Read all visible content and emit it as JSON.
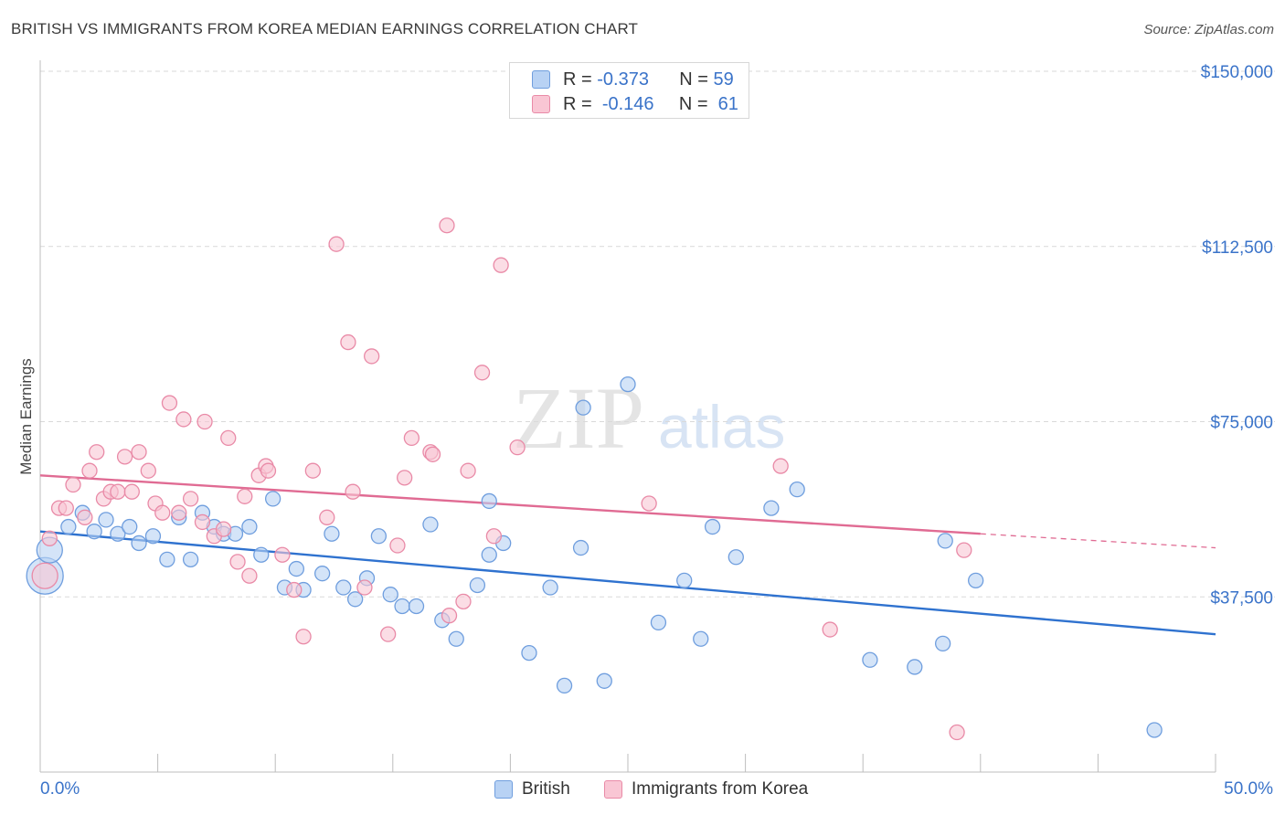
{
  "title": "BRITISH VS IMMIGRANTS FROM KOREA MEDIAN EARNINGS CORRELATION CHART",
  "source": "Source: ZipAtlas.com",
  "watermark": {
    "zip": "ZIP",
    "atlas": "atlas"
  },
  "legend": {
    "r_label": "R =",
    "n_label": "N =",
    "rows": [
      {
        "series": "British",
        "r": "-0.373",
        "n": "59"
      },
      {
        "series": "Immigrants from Korea",
        "r": "-0.146",
        "n": "61"
      }
    ]
  },
  "colors": {
    "british_fill": "#b8d2f4",
    "british_stroke": "#6f9ede",
    "british_line": "#2f72cf",
    "korea_fill": "#f9c6d4",
    "korea_stroke": "#e98aa7",
    "korea_line": "#e06b93",
    "tick_text": "#3a73c9",
    "grid": "#d9d9d9"
  },
  "chart_data": {
    "type": "scatter",
    "title": "BRITISH VS IMMIGRANTS FROM KOREA MEDIAN EARNINGS CORRELATION CHART",
    "ylabel": "Median Earnings",
    "xlabel": "",
    "xlim": [
      0,
      50
    ],
    "ylim": [
      0,
      150000
    ],
    "x_tick_labels": [
      "0.0%",
      "50.0%"
    ],
    "y_ticks": [
      37500,
      75000,
      112500,
      150000
    ],
    "y_tick_labels": [
      "$37,500",
      "$75,000",
      "$112,500",
      "$150,000"
    ],
    "grid": "horizontal dashed",
    "legend_position": "top-center",
    "series": [
      {
        "name": "British",
        "trend": {
          "x": [
            0,
            50
          ],
          "y": [
            51500,
            29500
          ]
        },
        "points": [
          [
            0.2,
            42000,
            3
          ],
          [
            0.4,
            47500,
            2
          ],
          [
            1.2,
            52500,
            1
          ],
          [
            1.8,
            55500,
            1
          ],
          [
            2.3,
            51500,
            1
          ],
          [
            2.8,
            54000,
            1
          ],
          [
            3.3,
            51000,
            1
          ],
          [
            3.8,
            52500,
            1
          ],
          [
            4.2,
            49000,
            1
          ],
          [
            4.8,
            50500,
            1
          ],
          [
            5.4,
            45500,
            1
          ],
          [
            5.9,
            54500,
            1
          ],
          [
            6.4,
            45500,
            1
          ],
          [
            6.9,
            55500,
            1
          ],
          [
            7.4,
            52500,
            1
          ],
          [
            7.8,
            51000,
            1
          ],
          [
            8.3,
            51000,
            1
          ],
          [
            8.9,
            52500,
            1
          ],
          [
            9.4,
            46500,
            1
          ],
          [
            9.9,
            58500,
            1
          ],
          [
            10.4,
            39500,
            1
          ],
          [
            10.9,
            43500,
            1
          ],
          [
            11.2,
            39000,
            1
          ],
          [
            12.0,
            42500,
            1
          ],
          [
            12.4,
            51000,
            1
          ],
          [
            12.9,
            39500,
            1
          ],
          [
            13.4,
            37000,
            1
          ],
          [
            13.9,
            41500,
            1
          ],
          [
            14.4,
            50500,
            1
          ],
          [
            14.9,
            38000,
            1
          ],
          [
            15.4,
            35500,
            1
          ],
          [
            16.0,
            35500,
            1
          ],
          [
            16.6,
            53000,
            1
          ],
          [
            17.1,
            32500,
            1
          ],
          [
            17.7,
            28500,
            1
          ],
          [
            18.6,
            40000,
            1
          ],
          [
            19.1,
            46500,
            1
          ],
          [
            19.1,
            58000,
            1
          ],
          [
            19.7,
            49000,
            1
          ],
          [
            20.8,
            25500,
            1
          ],
          [
            21.7,
            39500,
            1
          ],
          [
            22.3,
            18500,
            1
          ],
          [
            23.0,
            48000,
            1
          ],
          [
            23.1,
            78000,
            1
          ],
          [
            24.0,
            19500,
            1
          ],
          [
            25.0,
            83000,
            1
          ],
          [
            26.3,
            32000,
            1
          ],
          [
            27.4,
            41000,
            1
          ],
          [
            28.1,
            28500,
            1
          ],
          [
            28.6,
            52500,
            1
          ],
          [
            29.6,
            46000,
            1
          ],
          [
            31.1,
            56500,
            1
          ],
          [
            32.2,
            60500,
            1
          ],
          [
            35.3,
            24000,
            1
          ],
          [
            37.2,
            22500,
            1
          ],
          [
            38.4,
            27500,
            1
          ],
          [
            38.5,
            49500,
            1
          ],
          [
            39.8,
            41000,
            1
          ],
          [
            47.4,
            9000,
            1
          ]
        ]
      },
      {
        "name": "Immigrants from Korea",
        "trend": {
          "x": [
            0,
            40
          ],
          "y": [
            63500,
            51000
          ]
        },
        "trend_dashed": {
          "x": [
            40,
            50
          ],
          "y": [
            51000,
            48000
          ]
        },
        "points": [
          [
            0.2,
            42000,
            2
          ],
          [
            0.4,
            50000,
            1
          ],
          [
            0.8,
            56500,
            1
          ],
          [
            1.1,
            56500,
            1
          ],
          [
            1.4,
            61500,
            1
          ],
          [
            1.9,
            54500,
            1
          ],
          [
            2.1,
            64500,
            1
          ],
          [
            2.4,
            68500,
            1
          ],
          [
            2.7,
            58500,
            1
          ],
          [
            3.0,
            60000,
            1
          ],
          [
            3.3,
            60000,
            1
          ],
          [
            3.6,
            67500,
            1
          ],
          [
            3.9,
            60000,
            1
          ],
          [
            4.2,
            68500,
            1
          ],
          [
            4.6,
            64500,
            1
          ],
          [
            4.9,
            57500,
            1
          ],
          [
            5.2,
            55500,
            1
          ],
          [
            5.5,
            79000,
            1
          ],
          [
            5.9,
            55500,
            1
          ],
          [
            6.1,
            75500,
            1
          ],
          [
            6.4,
            58500,
            1
          ],
          [
            6.9,
            53500,
            1
          ],
          [
            7.0,
            75000,
            1
          ],
          [
            7.4,
            50500,
            1
          ],
          [
            7.8,
            52000,
            1
          ],
          [
            8.0,
            71500,
            1
          ],
          [
            8.4,
            45000,
            1
          ],
          [
            8.7,
            59000,
            1
          ],
          [
            8.9,
            42000,
            1
          ],
          [
            9.3,
            63500,
            1
          ],
          [
            9.6,
            65500,
            1
          ],
          [
            9.7,
            64500,
            1
          ],
          [
            10.3,
            46500,
            1
          ],
          [
            10.8,
            39000,
            1
          ],
          [
            11.2,
            29000,
            1
          ],
          [
            11.6,
            64500,
            1
          ],
          [
            12.2,
            54500,
            1
          ],
          [
            12.6,
            113000,
            1
          ],
          [
            13.1,
            92000,
            1
          ],
          [
            13.3,
            60000,
            1
          ],
          [
            13.8,
            39500,
            1
          ],
          [
            14.1,
            89000,
            1
          ],
          [
            14.8,
            29500,
            1
          ],
          [
            15.2,
            48500,
            1
          ],
          [
            15.5,
            63000,
            1
          ],
          [
            15.8,
            71500,
            1
          ],
          [
            16.6,
            68500,
            1
          ],
          [
            16.7,
            68000,
            1
          ],
          [
            17.3,
            117000,
            1
          ],
          [
            17.4,
            33500,
            1
          ],
          [
            18.0,
            36500,
            1
          ],
          [
            18.2,
            64500,
            1
          ],
          [
            18.8,
            85500,
            1
          ],
          [
            19.3,
            50500,
            1
          ],
          [
            19.6,
            108500,
            1
          ],
          [
            20.3,
            69500,
            1
          ],
          [
            25.9,
            57500,
            1
          ],
          [
            31.5,
            65500,
            1
          ],
          [
            33.6,
            30500,
            1
          ],
          [
            39.0,
            8500,
            1
          ],
          [
            39.3,
            47500,
            1
          ]
        ]
      }
    ]
  }
}
